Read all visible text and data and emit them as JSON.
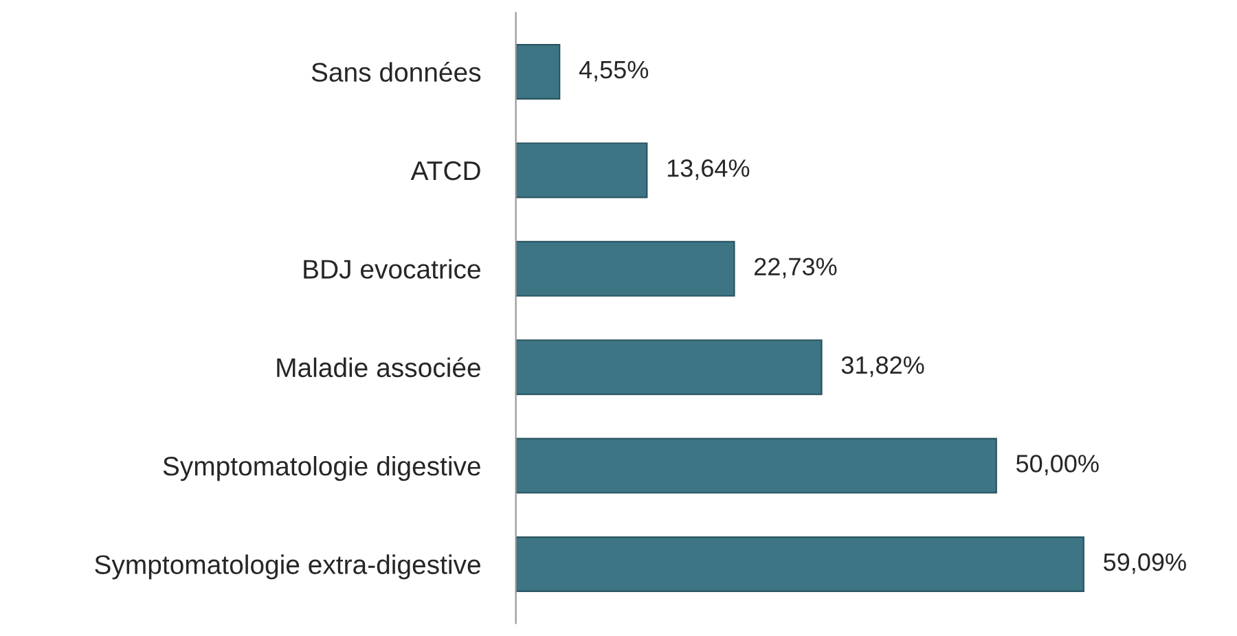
{
  "chart_data": {
    "type": "bar",
    "orientation": "horizontal",
    "categories": [
      "Sans données",
      "ATCD",
      "BDJ evocatrice",
      "Maladie associée",
      "Symptomatologie digestive",
      "Symptomatologie extra-digestive"
    ],
    "values": [
      4.55,
      13.64,
      22.73,
      31.82,
      50.0,
      59.09
    ],
    "value_labels": [
      "4,55%",
      "13,64%",
      "22,73%",
      "31,82%",
      "50,00%",
      "59,09%"
    ],
    "color": "#3d7585",
    "grid": false,
    "legend": false
  }
}
